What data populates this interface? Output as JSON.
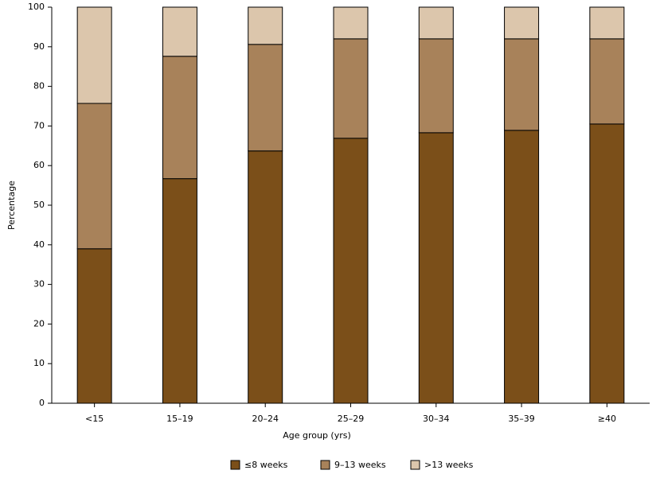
{
  "chart_data": {
    "type": "stacked-bar",
    "x_label": "Age group (yrs)",
    "y_label": "Percentage",
    "categories": [
      "<15",
      "15–19",
      "20–24",
      "25–29",
      "30–34",
      "35–39",
      "≥40"
    ],
    "series": [
      {
        "name": "≤8 weeks",
        "color": "#7b4f19",
        "values": [
          39.0,
          56.7,
          63.7,
          66.9,
          68.3,
          68.9,
          70.5
        ]
      },
      {
        "name": "9–13 weeks",
        "color": "#a8825a",
        "values": [
          36.7,
          30.9,
          26.9,
          25.1,
          23.7,
          23.1,
          21.5
        ]
      },
      {
        "name": ">13 weeks",
        "color": "#dcc6ac",
        "values": [
          24.3,
          12.4,
          9.4,
          8.0,
          8.0,
          8.0,
          8.0
        ]
      }
    ],
    "ylim": [
      0,
      100
    ],
    "yticks": [
      0,
      10,
      20,
      30,
      40,
      50,
      60,
      70,
      80,
      90,
      100
    ]
  }
}
